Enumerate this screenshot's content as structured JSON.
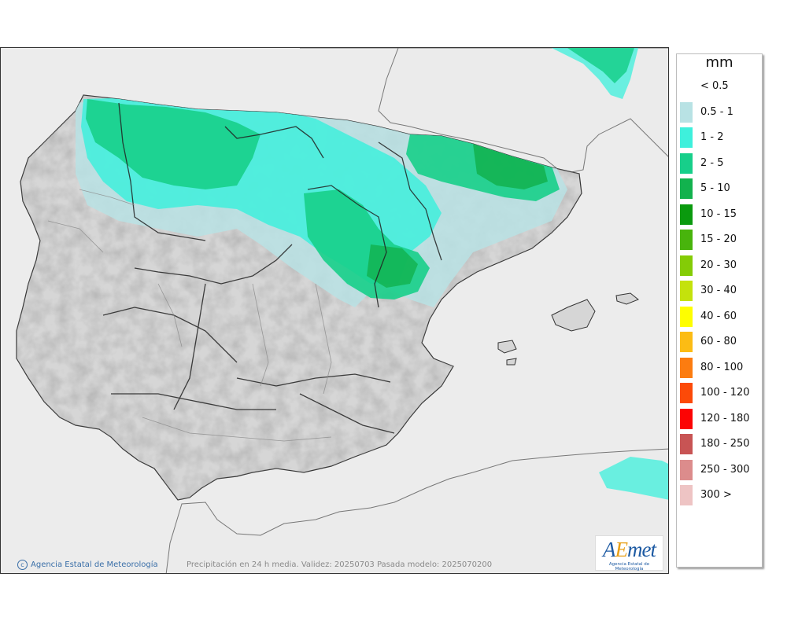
{
  "legend": {
    "title": "mm",
    "items": [
      {
        "label": "< 0.5",
        "color": "#ffffff"
      },
      {
        "label": "0.5 - 1",
        "color": "#b8e2e4"
      },
      {
        "label": "1 - 2",
        "color": "#3ef0dc"
      },
      {
        "label": "2 - 5",
        "color": "#17cf8a"
      },
      {
        "label": "5 - 10",
        "color": "#12b24e"
      },
      {
        "label": "10 - 15",
        "color": "#0a9a0e"
      },
      {
        "label": "15 - 20",
        "color": "#48b40c"
      },
      {
        "label": "20 - 30",
        "color": "#84cc06"
      },
      {
        "label": "30 - 40",
        "color": "#c4e20c"
      },
      {
        "label": "40 - 60",
        "color": "#fefe00"
      },
      {
        "label": "60 - 80",
        "color": "#fcbc14"
      },
      {
        "label": "80 - 100",
        "color": "#fc7c10"
      },
      {
        "label": "100 - 120",
        "color": "#fc4a08"
      },
      {
        "label": "120 - 180",
        "color": "#fc0404"
      },
      {
        "label": "180 - 250",
        "color": "#c85454"
      },
      {
        "label": "250 - 300",
        "color": "#dc8c8c"
      },
      {
        "label": "300 >",
        "color": "#eec4c4"
      }
    ]
  },
  "footer": {
    "credit": "Agencia Estatal de Meteorología",
    "caption": "Precipitación en 24 h media. Validez: 20250703 Pasada modelo: 2025070200"
  },
  "logo": {
    "text_pre": "A",
    "text_accent": "E",
    "text_post": "met",
    "subtitle": "Agencia Estatal de Meteorología"
  },
  "colors": {
    "sea": "#ececec",
    "land": "#d9d9d9",
    "foreign_land": "#ebebeb",
    "border": "#222222"
  }
}
